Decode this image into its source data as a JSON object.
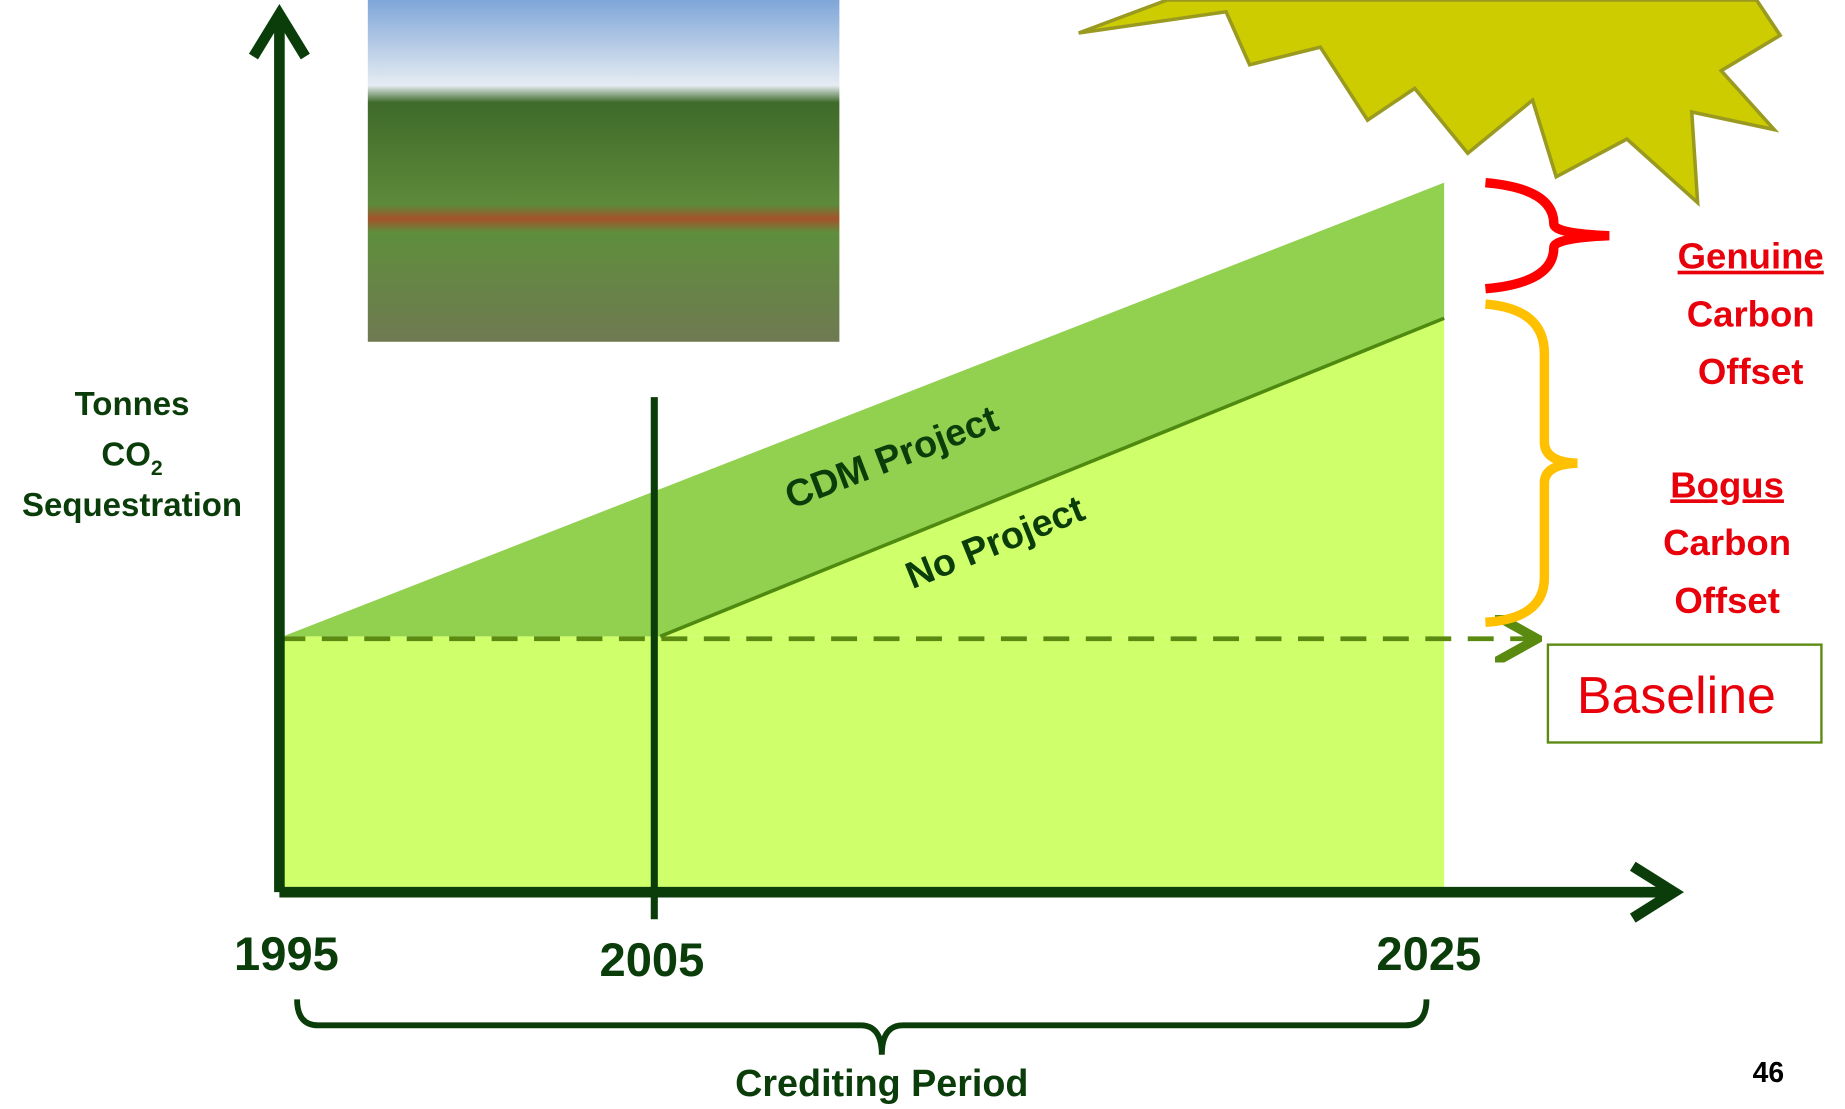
{
  "y_axis_label": {
    "line1": "Tonnes",
    "line2": "CO",
    "subscript": "2",
    "line3": "Sequestration"
  },
  "x_labels": [
    "1995",
    "2005",
    "2025"
  ],
  "x_axis_caption": "Crediting Period",
  "lines": {
    "project": "CDM Project",
    "no_project": "No Project"
  },
  "genuine": {
    "line1": "Genuine",
    "line2": "Carbon",
    "line3": "Offset"
  },
  "bogus": {
    "line1": "Bogus",
    "line2": "Carbon",
    "line3": "Offset"
  },
  "baseline": "Baseline",
  "page_number": "46"
}
